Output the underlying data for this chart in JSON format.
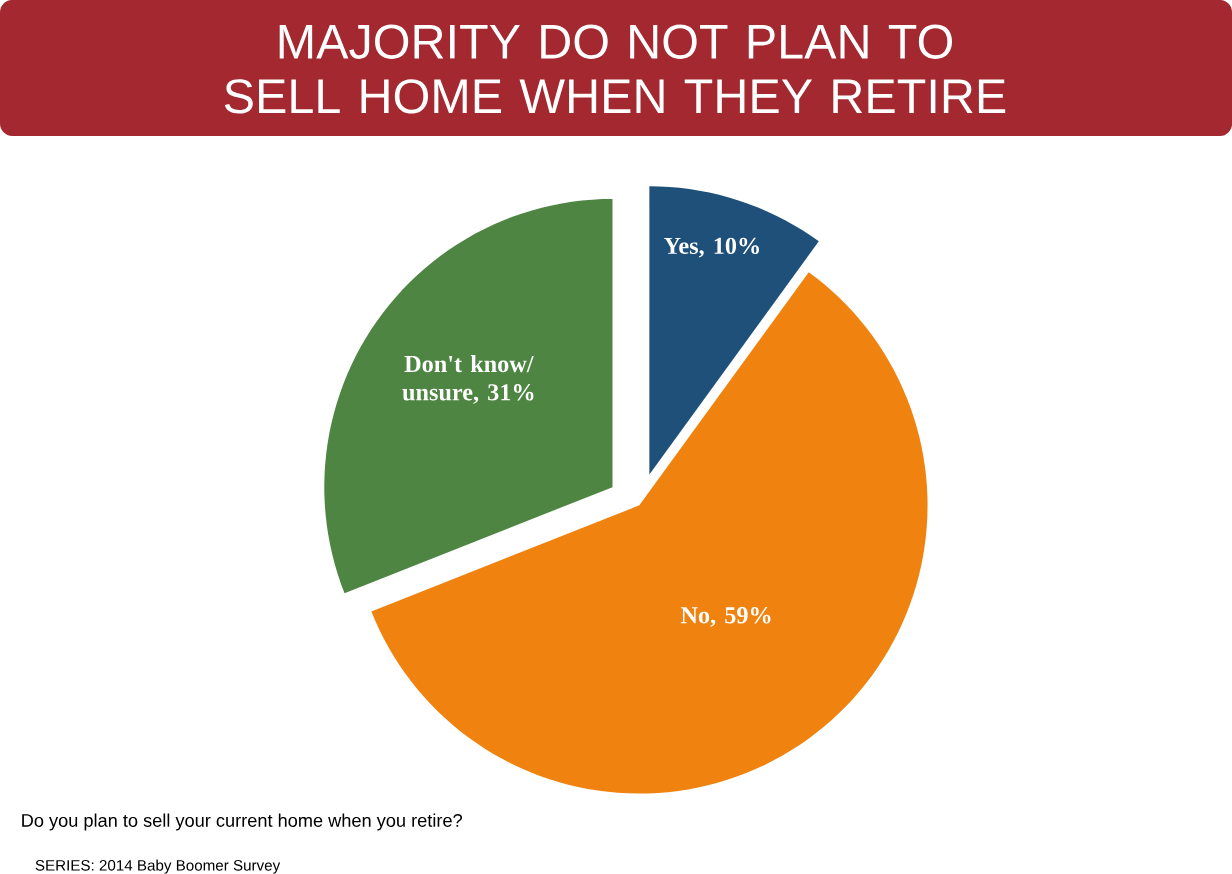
{
  "chart_data": {
    "type": "pie",
    "title": "MAJORITY DO NOT PLAN TO SELL HOME WHEN THEY RETIRE",
    "categories": [
      "Yes, 10%",
      "No, 59%",
      "Don't know/ unsure, 31%"
    ],
    "values": [
      10,
      59,
      31
    ],
    "colors": [
      "#1f5079",
      "#f0820f",
      "#4e8542"
    ],
    "legend": false,
    "annotations": [
      "Do you plan to sell your current home when you retire?",
      "SERIES: 2014 Baby Boomer Survey"
    ]
  }
}
